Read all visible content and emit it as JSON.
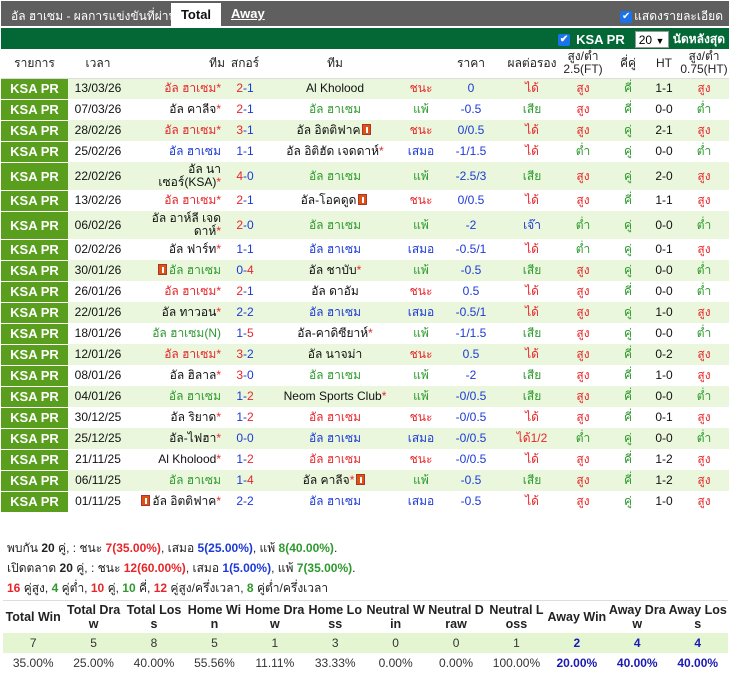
{
  "topbar": {
    "title": "อัล ฮาเซม - ผลการแข่งขันที่ผ่านมา",
    "tab_total": "Total",
    "tab_away": "Away",
    "show_detail": "แสดงรายละเอียด"
  },
  "filter": {
    "league": "KSA PR",
    "count": "20",
    "last_label": "นัดหลังสุด"
  },
  "columns": [
    "รายการ",
    "เวลา",
    "ทีม",
    "สกอร์",
    "ทีม",
    "ราคา",
    "ผลต่อรอง",
    "สูง/ต่ำ 2.5(FT)",
    "คี่คู่",
    "HT",
    "สูง/ต่ำ 0.75(HT)"
  ],
  "colors": {
    "win": "#e8262a",
    "draw": "#1c3ad6",
    "loss": "#2e9a2e",
    "league_bg": "#5a9e1e",
    "bar": "#036836"
  },
  "rows": [
    {
      "league": "KSA PR",
      "date": "13/03/26",
      "home": "อัล ฮาเซม",
      "home_star": "*",
      "score_h": "2",
      "score_a": "1",
      "away": "Al Kholood",
      "away_star": "",
      "side": "home",
      "result": "ชนะ",
      "hcp": "0",
      "hcp_res": "ได้",
      "ou": "สูง",
      "oe": "คี่",
      "ht": "1-1",
      "ouht": "สูง"
    },
    {
      "league": "KSA PR",
      "date": "07/03/26",
      "home": "อัล คาลีจ",
      "home_star": "*",
      "score_h": "2",
      "score_a": "1",
      "away": "อัล ฮาเซม",
      "away_star": "",
      "side": "away",
      "result": "แพ้",
      "hcp": "-0.5",
      "hcp_res": "เสีย",
      "ou": "สูง",
      "oe": "คี่",
      "ht": "0-0",
      "ouht": "ต่ำ"
    },
    {
      "league": "KSA PR",
      "date": "28/02/26",
      "home": "อัล ฮาเซม",
      "home_star": "*",
      "score_h": "3",
      "score_a": "1",
      "away": "อัล อิตติฟาค",
      "away_star": "",
      "away_card": "after",
      "side": "home",
      "result": "ชนะ",
      "hcp": "0/0.5",
      "hcp_res": "ได้",
      "ou": "สูง",
      "oe": "คู่",
      "ht": "2-1",
      "ouht": "สูง"
    },
    {
      "league": "KSA PR",
      "date": "25/02/26",
      "home": "อัล ฮาเซม",
      "home_star": "",
      "score_h": "1",
      "score_a": "1",
      "away": "อัล อิติฮัด เจดดาห์",
      "away_star": "*",
      "side": "home",
      "result": "เสมอ",
      "hcp": "-1/1.5",
      "hcp_res": "ได้",
      "ou": "ต่ำ",
      "oe": "คู่",
      "ht": "0-0",
      "ouht": "ต่ำ"
    },
    {
      "league": "KSA PR",
      "date": "22/02/26",
      "home": "อัล นาเซอร์(KSA)",
      "home_star": "*",
      "score_h": "4",
      "score_a": "0",
      "away": "อัล ฮาเซม",
      "away_star": "",
      "side": "away",
      "result": "แพ้",
      "hcp": "-2.5/3",
      "hcp_res": "เสีย",
      "ou": "สูง",
      "oe": "คู่",
      "ht": "2-0",
      "ouht": "สูง"
    },
    {
      "league": "KSA PR",
      "date": "13/02/26",
      "home": "อัล ฮาเซม",
      "home_star": "*",
      "score_h": "2",
      "score_a": "1",
      "away": "อัล-โอคดูด",
      "away_star": "",
      "away_card": "after",
      "side": "home",
      "result": "ชนะ",
      "hcp": "0/0.5",
      "hcp_res": "ได้",
      "ou": "สูง",
      "oe": "คี่",
      "ht": "1-1",
      "ouht": "สูง"
    },
    {
      "league": "KSA PR",
      "date": "06/02/26",
      "home": "อัล อาห์ลี เจดดาห์",
      "home_star": "*",
      "score_h": "2",
      "score_a": "0",
      "away": "อัล ฮาเซม",
      "away_star": "",
      "side": "away",
      "result": "แพ้",
      "hcp": "-2",
      "hcp_res": "เจ๊า",
      "ou": "ต่ำ",
      "oe": "คู่",
      "ht": "0-0",
      "ouht": "ต่ำ"
    },
    {
      "league": "KSA PR",
      "date": "02/02/26",
      "home": "อัล ฟาร์ท",
      "home_star": "*",
      "score_h": "1",
      "score_a": "1",
      "away": "อัล ฮาเซม",
      "away_star": "",
      "side": "away",
      "result": "เสมอ",
      "hcp": "-0.5/1",
      "hcp_res": "ได้",
      "ou": "ต่ำ",
      "oe": "คู่",
      "ht": "0-1",
      "ouht": "สูง"
    },
    {
      "league": "KSA PR",
      "date": "30/01/26",
      "home": "อัล ฮาเซม",
      "home_star": "",
      "home_card": "before",
      "score_h": "0",
      "score_a": "4",
      "away": "อัล ชาบับ",
      "away_star": "*",
      "side": "home",
      "result": "แพ้",
      "hcp": "-0.5",
      "hcp_res": "เสีย",
      "ou": "สูง",
      "oe": "คู่",
      "ht": "0-0",
      "ouht": "ต่ำ"
    },
    {
      "league": "KSA PR",
      "date": "26/01/26",
      "home": "อัล ฮาเซม",
      "home_star": "*",
      "score_h": "2",
      "score_a": "1",
      "away": "อัล ดาอัม",
      "away_star": "",
      "side": "home",
      "result": "ชนะ",
      "hcp": "0.5",
      "hcp_res": "ได้",
      "ou": "สูง",
      "oe": "คี่",
      "ht": "0-0",
      "ouht": "ต่ำ"
    },
    {
      "league": "KSA PR",
      "date": "22/01/26",
      "home": "อัล ทาวอน",
      "home_star": "*",
      "score_h": "2",
      "score_a": "2",
      "away": "อัล ฮาเซม",
      "away_star": "",
      "side": "away",
      "result": "เสมอ",
      "hcp": "-0.5/1",
      "hcp_res": "ได้",
      "ou": "สูง",
      "oe": "คู่",
      "ht": "1-0",
      "ouht": "สูง"
    },
    {
      "league": "KSA PR",
      "date": "18/01/26",
      "home": "อัล ฮาเซม(N)",
      "home_star": "",
      "score_h": "1",
      "score_a": "5",
      "away": "อัล-คาดิซียาห์",
      "away_star": "*",
      "side": "home",
      "result": "แพ้",
      "hcp": "-1/1.5",
      "hcp_res": "เสีย",
      "ou": "สูง",
      "oe": "คู่",
      "ht": "0-0",
      "ouht": "ต่ำ"
    },
    {
      "league": "KSA PR",
      "date": "12/01/26",
      "home": "อัล ฮาเซม",
      "home_star": "*",
      "score_h": "3",
      "score_a": "2",
      "away": "อัล นาจม่า",
      "away_star": "",
      "side": "home",
      "result": "ชนะ",
      "hcp": "0.5",
      "hcp_res": "ได้",
      "ou": "สูง",
      "oe": "คี่",
      "ht": "0-2",
      "ouht": "สูง"
    },
    {
      "league": "KSA PR",
      "date": "08/01/26",
      "home": "อัล ฮิลาล",
      "home_star": "*",
      "score_h": "3",
      "score_a": "0",
      "away": "อัล ฮาเซม",
      "away_star": "",
      "side": "away",
      "result": "แพ้",
      "hcp": "-2",
      "hcp_res": "เสีย",
      "ou": "สูง",
      "oe": "คี่",
      "ht": "1-0",
      "ouht": "สูง"
    },
    {
      "league": "KSA PR",
      "date": "04/01/26",
      "home": "อัล ฮาเซม",
      "home_star": "",
      "score_h": "1",
      "score_a": "2",
      "away": "Neom Sports Club",
      "away_star": "*",
      "side": "home",
      "result": "แพ้",
      "hcp": "-0/0.5",
      "hcp_res": "เสีย",
      "ou": "สูง",
      "oe": "คี่",
      "ht": "0-0",
      "ouht": "ต่ำ"
    },
    {
      "league": "KSA PR",
      "date": "30/12/25",
      "home": "อัล ริยาด",
      "home_star": "*",
      "score_h": "1",
      "score_a": "2",
      "away": "อัล ฮาเซม",
      "away_star": "",
      "side": "away",
      "result": "ชนะ",
      "hcp": "-0/0.5",
      "hcp_res": "ได้",
      "ou": "สูง",
      "oe": "คี่",
      "ht": "0-1",
      "ouht": "สูง"
    },
    {
      "league": "KSA PR",
      "date": "25/12/25",
      "home": "อัล-ไฟฮา",
      "home_star": "*",
      "score_h": "0",
      "score_a": "0",
      "away": "อัล ฮาเซม",
      "away_star": "",
      "side": "away",
      "result": "เสมอ",
      "hcp": "-0/0.5",
      "hcp_res": "ได้1/2",
      "ou": "ต่ำ",
      "oe": "คู่",
      "ht": "0-0",
      "ouht": "ต่ำ"
    },
    {
      "league": "KSA PR",
      "date": "21/11/25",
      "home": "Al Kholood",
      "home_star": "*",
      "score_h": "1",
      "score_a": "2",
      "away": "อัล ฮาเซม",
      "away_star": "",
      "side": "away",
      "result": "ชนะ",
      "hcp": "-0/0.5",
      "hcp_res": "ได้",
      "ou": "สูง",
      "oe": "คี่",
      "ht": "1-2",
      "ouht": "สูง"
    },
    {
      "league": "KSA PR",
      "date": "06/11/25",
      "home": "อัล ฮาเซม",
      "home_star": "",
      "score_h": "1",
      "score_a": "4",
      "away": "อัล คาลีจ",
      "away_star": "*",
      "away_card": "after",
      "side": "home",
      "result": "แพ้",
      "hcp": "-0.5",
      "hcp_res": "เสีย",
      "ou": "สูง",
      "oe": "คี่",
      "ht": "1-2",
      "ouht": "สูง"
    },
    {
      "league": "KSA PR",
      "date": "01/11/25",
      "home": "อัล อิตติฟาค",
      "home_star": "*",
      "home_card": "before",
      "score_h": "2",
      "score_a": "2",
      "away": "อัล ฮาเซม",
      "away_star": "",
      "side": "away",
      "result": "เสมอ",
      "hcp": "-0.5",
      "hcp_res": "ได้",
      "ou": "สูง",
      "oe": "คู่",
      "ht": "1-0",
      "ouht": "สูง"
    }
  ],
  "summary": {
    "line1": {
      "a": "พบกัน",
      "n": "20",
      "b": "คู่, : ชนะ",
      "w": "7",
      "wp": "(35.00%)",
      "c": ", เสมอ",
      "d": "5",
      "dp": "(25.00%)",
      "e": ", แพ้",
      "l": "8",
      "lp": "(40.00%)",
      "f": "."
    },
    "line2": {
      "a": "เปิดตลาด",
      "n": "20",
      "b": "คู่, : ชนะ",
      "w": "12",
      "wp": "(60.00%)",
      "c": ", เสมอ",
      "d": "1",
      "dp": "(5.00%)",
      "e": ", แพ้",
      "l": "7",
      "lp": "(35.00%)",
      "f": "."
    },
    "line3": {
      "v1": "16",
      "t1": "คู่สูง,",
      "v2": "4",
      "t2": "คู่ต่ำ,",
      "v3": "10",
      "t3": "คู่,",
      "v4": "10",
      "t4": "คี่,",
      "v5": "12",
      "t5": "คู่สูง/ครึ่งเวลา,",
      "v6": "8",
      "t6": "คู่ต่ำ/ครึ่งเวลา"
    }
  },
  "stats": {
    "headers": [
      "Total Win",
      "Total Draw",
      "Total Loss",
      "Home Win",
      "Home Draw",
      "Home Loss",
      "Neutral Win",
      "Neutral Draw",
      "Neutral Loss",
      "Away Win",
      "Away Draw",
      "Away Loss"
    ],
    "counts": [
      "7",
      "5",
      "8",
      "5",
      "1",
      "3",
      "0",
      "0",
      "1",
      "2",
      "4",
      "4"
    ],
    "percents": [
      "35.00%",
      "25.00%",
      "40.00%",
      "55.56%",
      "11.11%",
      "33.33%",
      "0.00%",
      "0.00%",
      "100.00%",
      "20.00%",
      "40.00%",
      "40.00%"
    ]
  }
}
